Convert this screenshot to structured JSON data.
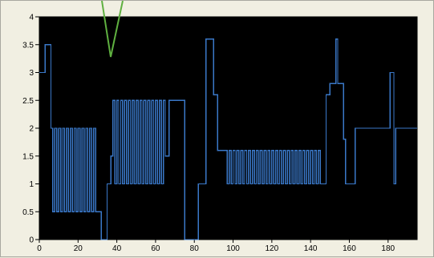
{
  "chart_data": {
    "type": "line",
    "title": "",
    "xlabel": "",
    "ylabel": "",
    "xlim": [
      0,
      195
    ],
    "ylim": [
      0,
      4
    ],
    "x_ticks": [
      0,
      20,
      40,
      60,
      80,
      100,
      120,
      140,
      160,
      180
    ],
    "y_ticks": [
      0,
      0.5,
      1,
      1.5,
      2,
      2.5,
      3,
      3.5,
      4
    ],
    "x_tick_labels": [
      "0",
      "20",
      "40",
      "60",
      "80",
      "100",
      "120",
      "140",
      "160",
      "180"
    ],
    "y_tick_labels": [
      "0",
      "0.5",
      "1",
      "1.5",
      "2",
      "2.5",
      "3",
      "3.5",
      "4"
    ],
    "plot_background": "#000000",
    "line_color": "#3a78c8",
    "annotation_color": "#5fb040",
    "grid": false,
    "legend": "none",
    "series": [
      {
        "step": "post",
        "x": [
          0,
          3,
          6,
          7,
          8,
          9,
          10,
          11,
          12,
          13,
          14,
          15,
          16,
          17,
          18,
          19,
          20,
          21,
          22,
          23,
          24,
          25,
          26,
          27,
          28,
          29,
          30,
          32,
          35,
          36,
          37,
          38,
          39,
          40,
          41,
          42,
          43,
          44,
          45,
          46,
          47,
          48,
          49,
          50,
          51,
          52,
          53,
          54,
          55,
          56,
          57,
          58,
          59,
          60,
          61,
          62,
          63,
          64,
          65,
          67,
          75,
          80,
          82,
          86,
          90,
          92,
          94,
          97,
          98,
          99,
          100,
          101,
          102,
          103,
          104,
          105,
          106,
          107,
          108,
          109,
          110,
          111,
          112,
          113,
          114,
          115,
          116,
          117,
          118,
          119,
          120,
          121,
          122,
          123,
          124,
          125,
          126,
          127,
          128,
          129,
          130,
          131,
          132,
          133,
          134,
          135,
          136,
          137,
          138,
          139,
          140,
          141,
          142,
          143,
          144,
          145,
          146,
          148,
          150,
          153,
          154,
          157,
          158,
          160,
          163,
          179,
          181,
          182,
          183,
          184,
          185,
          186,
          195
        ],
        "y": [
          3.0,
          3.5,
          2.0,
          0.5,
          2.0,
          0.5,
          2.0,
          0.5,
          2.0,
          0.5,
          2.0,
          0.5,
          2.0,
          0.5,
          2.0,
          0.5,
          2.0,
          0.5,
          2.0,
          0.5,
          2.0,
          0.5,
          2.0,
          0.5,
          2.0,
          0.5,
          0.5,
          0.0,
          1.0,
          1.0,
          1.5,
          2.5,
          1.0,
          2.5,
          1.0,
          2.5,
          1.0,
          2.5,
          1.0,
          2.5,
          1.0,
          2.5,
          1.0,
          2.5,
          1.0,
          2.5,
          1.0,
          2.5,
          1.0,
          2.5,
          1.0,
          2.5,
          1.0,
          2.5,
          1.0,
          2.5,
          1.0,
          2.5,
          1.5,
          2.5,
          0.0,
          0.0,
          1.0,
          3.6,
          2.6,
          1.6,
          1.6,
          1.0,
          1.6,
          1.0,
          1.6,
          1.0,
          1.6,
          1.0,
          1.6,
          1.0,
          1.6,
          1.0,
          1.6,
          1.0,
          1.6,
          1.0,
          1.6,
          1.0,
          1.6,
          1.0,
          1.6,
          1.0,
          1.6,
          1.0,
          1.6,
          1.0,
          1.6,
          1.0,
          1.6,
          1.0,
          1.6,
          1.0,
          1.6,
          1.0,
          1.6,
          1.0,
          1.6,
          1.0,
          1.6,
          1.0,
          1.6,
          1.0,
          1.6,
          1.0,
          1.6,
          1.0,
          1.6,
          1.0,
          1.6,
          1.0,
          1.0,
          2.6,
          2.8,
          3.6,
          2.8,
          1.8,
          1.0,
          1.0,
          2.0,
          2.0,
          3.0,
          3.0,
          1.0,
          2.0,
          2.0,
          2.0,
          2.0
        ]
      }
    ]
  }
}
